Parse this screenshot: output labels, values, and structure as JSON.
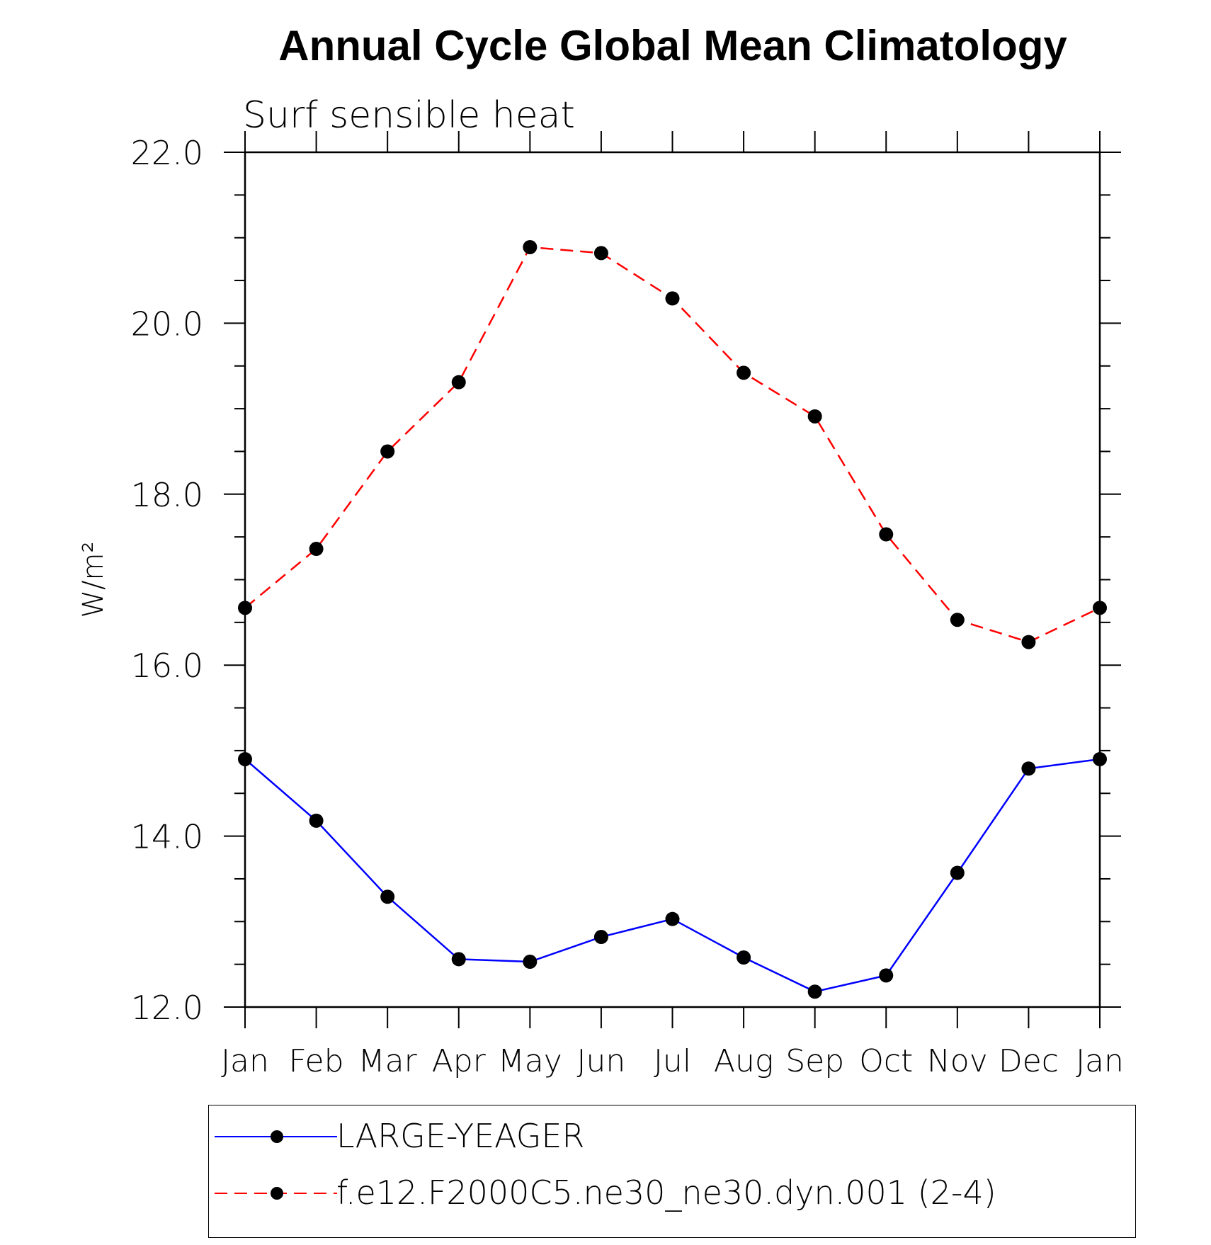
{
  "chart_data": {
    "type": "line",
    "title": "Annual Cycle Global Mean Climatology",
    "subtitle": "Surf sensible heat",
    "ylabel": "W/m²",
    "ylim": [
      12.0,
      22.0
    ],
    "yticks": [
      "12.0",
      "14.0",
      "16.0",
      "18.0",
      "20.0",
      "22.0"
    ],
    "categories": [
      "Jan",
      "Feb",
      "Mar",
      "Apr",
      "May",
      "Jun",
      "Jul",
      "Aug",
      "Sep",
      "Oct",
      "Nov",
      "Dec",
      "Jan"
    ],
    "series": [
      {
        "name": "LARGE-YEAGER",
        "color": "#0000ff",
        "dash": "solid",
        "values": [
          14.9,
          14.18,
          13.29,
          12.56,
          12.53,
          12.82,
          13.03,
          12.58,
          12.18,
          12.37,
          13.57,
          14.79,
          14.9
        ]
      },
      {
        "name": "f.e12.F2000C5.ne30_ne30.dyn.001 (2-4)",
        "color": "#ff0000",
        "dash": "dashed",
        "values": [
          16.67,
          17.36,
          18.5,
          19.31,
          20.89,
          20.82,
          20.29,
          19.42,
          18.91,
          17.53,
          16.53,
          16.27,
          16.67
        ]
      }
    ],
    "grid": false,
    "legend_position": "bottom"
  }
}
